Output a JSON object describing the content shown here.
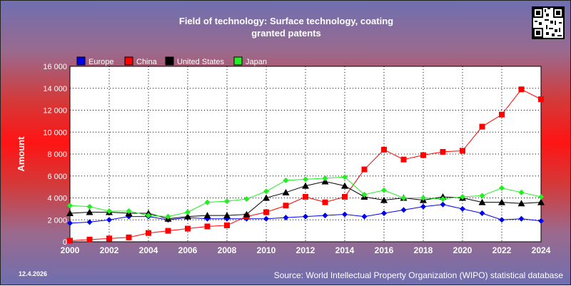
{
  "header": {
    "title_line1": "Field of technology: Surface technology, coating",
    "title_line2": "granted patents"
  },
  "footer": {
    "date": "12.4.2026",
    "source": "Source: World Intellectual Property Organization (WIPO) statistical database"
  },
  "colors": {
    "Europe": "#0000ee",
    "China": "#ff0000",
    "United States": "#000000",
    "Japan": "#22ee22"
  },
  "chart_data": {
    "type": "line",
    "title": "Field of technology: Surface technology, coating",
    "subtitle": "granted patents",
    "ylabel": "Amount",
    "xlabel": "",
    "ylim": [
      0,
      16000
    ],
    "yticks": [
      0,
      2000,
      4000,
      6000,
      8000,
      10000,
      12000,
      14000,
      16000
    ],
    "ytick_labels": [
      "0",
      "2 000",
      "4 000",
      "6 000",
      "8 000",
      "10 000",
      "12 000",
      "14 000",
      "16 000"
    ],
    "xlim": [
      2000,
      2024
    ],
    "xticks": [
      2000,
      2002,
      2004,
      2006,
      2008,
      2010,
      2012,
      2014,
      2016,
      2018,
      2020,
      2022,
      2024
    ],
    "grid": true,
    "legend_position": "top-left",
    "x": [
      2000,
      2001,
      2002,
      2003,
      2004,
      2005,
      2006,
      2007,
      2008,
      2009,
      2010,
      2011,
      2012,
      2013,
      2014,
      2015,
      2016,
      2017,
      2018,
      2019,
      2020,
      2021,
      2022,
      2023,
      2024
    ],
    "series": [
      {
        "name": "Europe",
        "marker": "diamond",
        "values": [
          1700,
          1800,
          2000,
          2300,
          2300,
          2000,
          2200,
          2100,
          2100,
          2100,
          2100,
          2200,
          2300,
          2400,
          2500,
          2300,
          2600,
          2900,
          3200,
          3400,
          3000,
          2600,
          2000,
          2100,
          1900
        ]
      },
      {
        "name": "China",
        "marker": "square",
        "values": [
          100,
          200,
          300,
          400,
          800,
          1000,
          1200,
          1400,
          1500,
          2300,
          2700,
          3300,
          4100,
          3600,
          4100,
          6600,
          8400,
          7500,
          7900,
          8200,
          8300,
          10500,
          11600,
          13900,
          13000
        ]
      },
      {
        "name": "United States",
        "marker": "triangle",
        "values": [
          2600,
          2700,
          2700,
          2600,
          2600,
          2100,
          2300,
          2400,
          2400,
          2500,
          4000,
          4500,
          5100,
          5500,
          5100,
          4100,
          3800,
          4000,
          3800,
          4100,
          4000,
          3600,
          3600,
          3500,
          3600
        ]
      },
      {
        "name": "Japan",
        "marker": "diamond",
        "values": [
          3300,
          3200,
          2800,
          2800,
          2400,
          2300,
          2700,
          3600,
          3700,
          3900,
          4600,
          5600,
          5700,
          5800,
          5900,
          4300,
          4700,
          4000,
          4000,
          3900,
          4100,
          4200,
          4900,
          4500,
          4100
        ]
      }
    ]
  }
}
